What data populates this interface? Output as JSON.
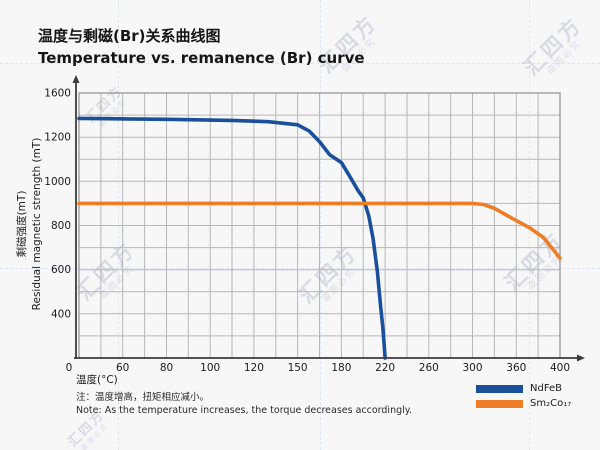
{
  "watermark": {
    "text": "汇四方",
    "subtext": "盗图必究"
  },
  "header": {
    "title_zh": "温度与剩磁(Br)关系曲线图",
    "title_en": "Temperature vs. remanence (Br) curve"
  },
  "axis": {
    "x_title": "温度(°C)",
    "y_title_zh": "剩磁强度(mT)",
    "y_title_en": "Residual magnetic strength (mT)"
  },
  "notes": {
    "zh": "注：温度增高，扭矩相应减小。",
    "en": "Note: As the temperature increases, the torque decreases accordingly."
  },
  "ui": {
    "legend": {
      "items": [
        {
          "label": "NdFeB",
          "color": "#1a4f9c"
        },
        {
          "label": "Sm₂Co₁₇",
          "color": "#ee7d26"
        }
      ]
    }
  },
  "chart_data": {
    "type": "line",
    "title": "温度与剩磁(Br)关系曲线图 / Temperature vs. remanence (Br) curve",
    "xlabel": "温度(°C)",
    "ylabel": "剩磁强度(mT) / Residual magnetic strength (mT)",
    "x_tick_labels": [
      "0",
      "60",
      "80",
      "100",
      "120",
      "150",
      "180",
      "220",
      "260",
      "300",
      "360",
      "400"
    ],
    "y_tick_labels": [
      "1600",
      "1200",
      "1000",
      "800",
      "600",
      "400",
      "0"
    ],
    "xlim": [
      0,
      400
    ],
    "ylim": [
      0,
      1600
    ],
    "grid": true,
    "tick_spacing": "even",
    "legend_position": "bottom-right",
    "series": [
      {
        "name": "NdFeB",
        "color": "#1a4f9c",
        "points": [
          [
            0,
            1370
          ],
          [
            40,
            1367
          ],
          [
            80,
            1362
          ],
          [
            110,
            1352
          ],
          [
            130,
            1340
          ],
          [
            150,
            1312
          ],
          [
            158,
            1255
          ],
          [
            165,
            1180
          ],
          [
            172,
            1120
          ],
          [
            180,
            1085
          ],
          [
            188,
            1020
          ],
          [
            195,
            960
          ],
          [
            200,
            925
          ],
          [
            205,
            845
          ],
          [
            209,
            740
          ],
          [
            213,
            590
          ],
          [
            216,
            430
          ],
          [
            218,
            270
          ],
          [
            219,
            140
          ],
          [
            220,
            0
          ]
        ]
      },
      {
        "name": "Sm₂Co₁₇",
        "color": "#ee7d26",
        "points": [
          [
            0,
            900
          ],
          [
            60,
            900
          ],
          [
            120,
            900
          ],
          [
            180,
            900
          ],
          [
            240,
            900
          ],
          [
            300,
            900
          ],
          [
            315,
            895
          ],
          [
            330,
            878
          ],
          [
            345,
            850
          ],
          [
            360,
            822
          ],
          [
            372,
            790
          ],
          [
            385,
            745
          ],
          [
            400,
            652
          ]
        ]
      }
    ]
  }
}
